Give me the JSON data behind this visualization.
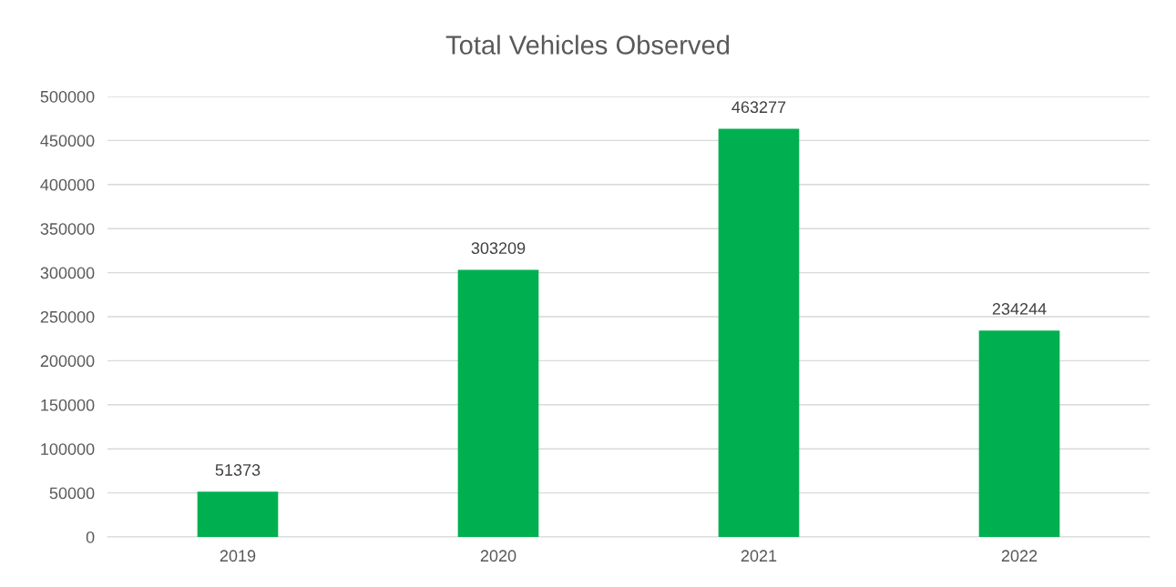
{
  "chart_data": {
    "type": "bar",
    "title": "Total Vehicles Observed",
    "categories": [
      "2019",
      "2020",
      "2021",
      "2022"
    ],
    "values": [
      51373,
      303209,
      463277,
      234244
    ],
    "color": "#00b050",
    "ylim": [
      0,
      500000
    ],
    "yticks": [
      0,
      50000,
      100000,
      150000,
      200000,
      250000,
      300000,
      350000,
      400000,
      450000,
      500000
    ],
    "grid": "y",
    "data_labels": true,
    "legend": false
  }
}
